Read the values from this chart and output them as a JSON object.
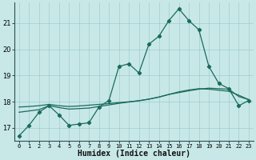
{
  "xlabel": "Humidex (Indice chaleur)",
  "bg_color": "#c8e8e8",
  "plot_bg_color": "#c8e8e8",
  "grid_color": "#a0cccc",
  "line_color": "#1a6b5a",
  "axis_color": "#2a5050",
  "xlim": [
    -0.5,
    23.5
  ],
  "ylim": [
    16.5,
    21.8
  ],
  "yticks": [
    17,
    18,
    19,
    20,
    21
  ],
  "xticks": [
    0,
    1,
    2,
    3,
    4,
    5,
    6,
    7,
    8,
    9,
    10,
    11,
    12,
    13,
    14,
    15,
    16,
    17,
    18,
    19,
    20,
    21,
    22,
    23
  ],
  "series1_x": [
    0,
    1,
    2,
    3,
    4,
    5,
    6,
    7,
    8,
    9,
    10,
    11,
    12,
    13,
    14,
    15,
    16,
    17,
    18,
    19,
    20,
    21,
    22,
    23
  ],
  "series1_y": [
    16.7,
    17.1,
    17.6,
    17.85,
    17.5,
    17.1,
    17.15,
    17.2,
    17.8,
    18.05,
    19.35,
    19.45,
    19.1,
    20.2,
    20.5,
    21.1,
    21.55,
    21.1,
    20.75,
    19.35,
    18.7,
    18.5,
    17.85,
    18.05
  ],
  "series2_x": [
    0,
    1,
    2,
    3,
    4,
    5,
    6,
    7,
    8,
    9,
    10,
    11,
    12,
    13,
    14,
    15,
    16,
    17,
    18,
    19,
    20,
    21,
    22,
    23
  ],
  "series2_y": [
    17.6,
    17.65,
    17.7,
    17.85,
    17.78,
    17.72,
    17.74,
    17.76,
    17.82,
    17.88,
    17.94,
    17.99,
    18.04,
    18.1,
    18.18,
    18.28,
    18.35,
    18.42,
    18.48,
    18.52,
    18.5,
    18.48,
    18.2,
    18.08
  ],
  "series3_x": [
    0,
    1,
    2,
    3,
    4,
    5,
    6,
    7,
    8,
    9,
    10,
    11,
    12,
    13,
    14,
    15,
    16,
    17,
    18,
    19,
    20,
    21,
    22,
    23
  ],
  "series3_y": [
    17.8,
    17.82,
    17.85,
    17.9,
    17.85,
    17.82,
    17.84,
    17.87,
    17.9,
    17.93,
    17.97,
    18.0,
    18.04,
    18.1,
    18.18,
    18.28,
    18.38,
    18.45,
    18.5,
    18.48,
    18.44,
    18.4,
    18.25,
    18.08
  ]
}
